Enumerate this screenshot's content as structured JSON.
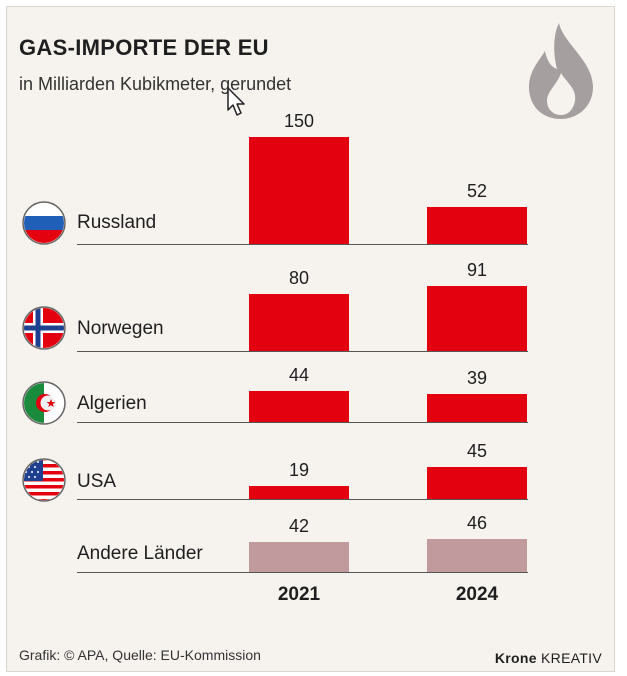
{
  "header": {
    "title": "GAS-IMPORTE DER EU",
    "subtitle": "in Milliarden Kubikmeter, gerundet"
  },
  "icons": {
    "flame": "flame-icon",
    "cursor": "mouse-pointer-icon"
  },
  "colors": {
    "bar": "#e3000f",
    "bar_other": "#c09a9d",
    "flame": "#a59fa0",
    "background": "#f6f3ee"
  },
  "chart_data": {
    "type": "bar",
    "orientation": "grouped-rows",
    "title": "GAS-IMPORTE DER EU",
    "subtitle": "in Milliarden Kubikmeter, gerundet",
    "unit": "Milliarden Kubikmeter",
    "categories": [
      "Russland",
      "Norwegen",
      "Algerien",
      "USA",
      "Andere Länder"
    ],
    "series": [
      {
        "name": "2021",
        "values": [
          150,
          80,
          44,
          19,
          42
        ]
      },
      {
        "name": "2024",
        "values": [
          52,
          91,
          39,
          45,
          46
        ]
      }
    ]
  },
  "footer": {
    "source": "Grafik: © APA, Quelle: EU-Kommission",
    "brand_bold": "Krone",
    "brand_rest": " KREATIV"
  }
}
